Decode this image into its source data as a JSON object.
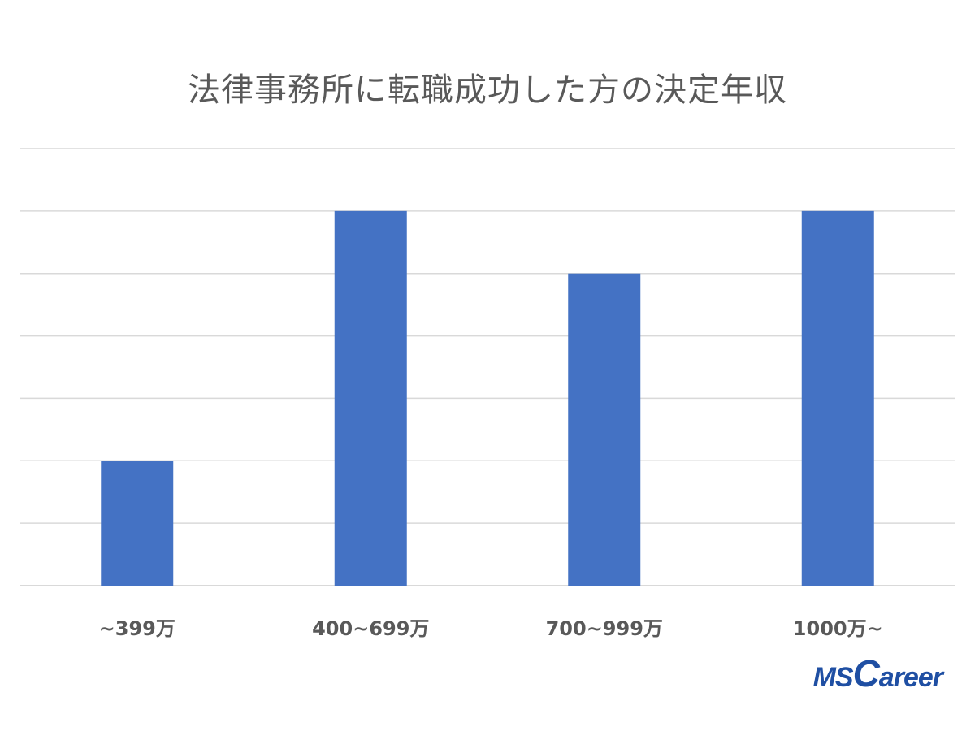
{
  "chart_data": {
    "type": "bar",
    "title": "法律事務所に転職成功した方の決定年収",
    "categories": [
      "~399万",
      "400~699万",
      "700~999万",
      "1000万~"
    ],
    "values": [
      2,
      6,
      5,
      6
    ],
    "ylim": [
      0,
      7
    ],
    "grid": true,
    "xlabel": "",
    "ylabel": "",
    "bar_color": "#4472c4",
    "grid_color": "#d9d9d9"
  },
  "logo": {
    "text_ms": "MS",
    "text_c": "C",
    "text_rest": "areer",
    "color": "#1f4fa3"
  }
}
